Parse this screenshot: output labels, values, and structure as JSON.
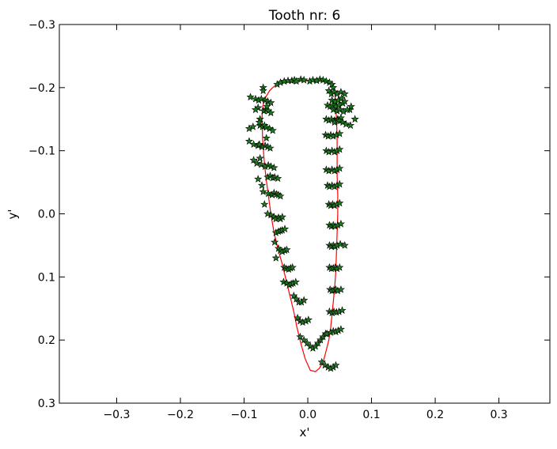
{
  "chart_data": {
    "type": "scatter",
    "title": "Tooth nr: 6",
    "xlabel": "x'",
    "ylabel": "y'",
    "xlim": [
      -0.39,
      0.38
    ],
    "ylim": [
      0.3,
      -0.3
    ],
    "y_axis_inverted": true,
    "grid": false,
    "legend": "none",
    "x_ticks": [
      -0.3,
      -0.2,
      -0.1,
      0.0,
      0.1,
      0.2,
      0.3
    ],
    "x_tick_labels": [
      "−0.3",
      "−0.2",
      "−0.1",
      "0.0",
      "0.1",
      "0.2",
      "0.3"
    ],
    "y_ticks": [
      -0.3,
      -0.2,
      -0.1,
      0.0,
      0.1,
      0.2,
      0.3
    ],
    "y_tick_labels": [
      "−0.3",
      "−0.2",
      "−0.1",
      "0.0",
      "0.1",
      "0.2",
      "0.3"
    ],
    "colors": {
      "marker_fill": "#1e7a1e",
      "marker_edge": "#000000",
      "mean_line": "#ff0000"
    },
    "series": [
      {
        "style": "line",
        "x": [
          -0.055,
          -0.06,
          -0.066,
          -0.071,
          -0.072,
          -0.071,
          -0.069,
          -0.066,
          -0.062,
          -0.058,
          -0.053,
          -0.047,
          -0.04,
          -0.034,
          -0.028,
          -0.022,
          -0.017,
          -0.011,
          -0.004,
          0.004,
          0.012,
          0.018,
          0.024,
          0.028,
          0.033,
          0.036,
          0.039,
          0.042,
          0.044,
          0.045,
          0.046,
          0.047,
          0.047,
          0.046,
          0.046,
          0.046,
          0.045,
          0.044,
          0.043,
          0.042,
          0.04,
          0.036,
          0.031,
          0.022,
          0.01,
          -0.004,
          -0.02,
          -0.036,
          -0.049,
          -0.055
        ],
        "y": [
          -0.2,
          -0.195,
          -0.185,
          -0.17,
          -0.15,
          -0.12,
          -0.09,
          -0.06,
          -0.03,
          0.0,
          0.03,
          0.055,
          0.08,
          0.105,
          0.13,
          0.155,
          0.18,
          0.205,
          0.23,
          0.248,
          0.25,
          0.245,
          0.235,
          0.22,
          0.2,
          0.18,
          0.15,
          0.12,
          0.09,
          0.06,
          0.03,
          0.0,
          -0.03,
          -0.06,
          -0.09,
          -0.12,
          -0.15,
          -0.17,
          -0.185,
          -0.195,
          -0.2,
          -0.205,
          -0.208,
          -0.21,
          -0.211,
          -0.211,
          -0.21,
          -0.208,
          -0.205,
          -0.2
        ]
      },
      {
        "style": "star-markers",
        "x": [
          -0.048,
          -0.043,
          -0.037,
          -0.031,
          -0.025,
          -0.021,
          -0.018,
          -0.011,
          -0.006,
          0.003,
          0.008,
          0.014,
          0.019,
          0.024,
          0.029,
          0.034,
          0.038,
          0.04,
          -0.09,
          -0.082,
          -0.077,
          -0.073,
          -0.067,
          -0.063,
          -0.058,
          -0.07,
          -0.07,
          -0.078,
          -0.082,
          -0.069,
          -0.066,
          -0.062,
          -0.058,
          -0.064,
          -0.092,
          -0.086,
          -0.075,
          -0.071,
          -0.068,
          -0.065,
          -0.06,
          -0.055,
          -0.075,
          -0.076,
          -0.092,
          -0.085,
          -0.078,
          -0.072,
          -0.067,
          -0.063,
          -0.059,
          -0.065,
          -0.085,
          -0.08,
          -0.073,
          -0.067,
          -0.062,
          -0.058,
          -0.053,
          -0.075,
          -0.078,
          -0.063,
          -0.059,
          -0.055,
          -0.052,
          -0.047,
          -0.072,
          -0.07,
          -0.062,
          -0.056,
          -0.053,
          -0.049,
          -0.046,
          -0.043,
          -0.068,
          -0.058,
          -0.053,
          -0.05,
          -0.046,
          -0.043,
          -0.04,
          -0.063,
          -0.05,
          -0.046,
          -0.043,
          -0.04,
          -0.036,
          -0.052,
          -0.046,
          -0.043,
          -0.04,
          -0.036,
          -0.033,
          -0.05,
          -0.037,
          -0.034,
          -0.03,
          -0.027,
          -0.024,
          -0.038,
          -0.033,
          -0.029,
          -0.026,
          -0.023,
          -0.019,
          -0.022,
          -0.018,
          -0.014,
          -0.01,
          -0.006,
          -0.016,
          -0.012,
          -0.008,
          -0.003,
          0.001,
          -0.012,
          -0.006,
          -0.001,
          0.004,
          0.008,
          0.012,
          0.016,
          0.02,
          0.024,
          0.028,
          0.022,
          0.027,
          0.032,
          0.036,
          0.04,
          0.044,
          0.03,
          0.036,
          0.04,
          0.044,
          0.048,
          0.052,
          0.034,
          0.038,
          0.041,
          0.045,
          0.049,
          0.054,
          0.035,
          0.038,
          0.041,
          0.044,
          0.047,
          0.052,
          0.034,
          0.037,
          0.04,
          0.043,
          0.046,
          0.05,
          0.034,
          0.037,
          0.04,
          0.043,
          0.046,
          0.051,
          0.034,
          0.037,
          0.04,
          0.043,
          0.047,
          0.052,
          0.033,
          0.036,
          0.039,
          0.042,
          0.046,
          0.05,
          0.031,
          0.034,
          0.038,
          0.042,
          0.046,
          0.05,
          0.029,
          0.033,
          0.038,
          0.042,
          0.046,
          0.05,
          0.029,
          0.033,
          0.038,
          0.042,
          0.046,
          0.05,
          0.028,
          0.032,
          0.036,
          0.04,
          0.045,
          0.05,
          0.029,
          0.033,
          0.037,
          0.042,
          0.047,
          0.052,
          0.031,
          0.035,
          0.039,
          0.044,
          0.049,
          0.055,
          0.033,
          0.037,
          0.041,
          0.046,
          0.052,
          0.058,
          0.038,
          0.043,
          0.048,
          0.053,
          0.058,
          0.066,
          0.04,
          0.046,
          0.05,
          0.056,
          0.062,
          0.068,
          0.074,
          0.042,
          0.047,
          0.05,
          0.055,
          0.06,
          0.067,
          -0.076,
          0.058
        ],
        "y": [
          -0.205,
          -0.208,
          -0.21,
          -0.211,
          -0.211,
          -0.212,
          -0.21,
          -0.213,
          -0.212,
          -0.21,
          -0.212,
          -0.211,
          -0.213,
          -0.212,
          -0.21,
          -0.208,
          -0.205,
          -0.2,
          -0.185,
          -0.182,
          -0.18,
          -0.182,
          -0.18,
          -0.178,
          -0.176,
          -0.2,
          -0.195,
          -0.168,
          -0.165,
          -0.163,
          -0.165,
          -0.163,
          -0.16,
          -0.17,
          -0.135,
          -0.138,
          -0.14,
          -0.138,
          -0.14,
          -0.137,
          -0.135,
          -0.132,
          -0.15,
          -0.145,
          -0.115,
          -0.11,
          -0.108,
          -0.106,
          -0.108,
          -0.106,
          -0.104,
          -0.12,
          -0.085,
          -0.08,
          -0.078,
          -0.075,
          -0.077,
          -0.075,
          -0.073,
          -0.088,
          -0.055,
          -0.058,
          -0.06,
          -0.057,
          -0.058,
          -0.056,
          -0.045,
          -0.035,
          -0.032,
          -0.03,
          -0.033,
          -0.031,
          -0.03,
          -0.028,
          -0.015,
          0.002,
          0.005,
          0.008,
          0.006,
          0.008,
          0.005,
          0.0,
          0.03,
          0.028,
          0.027,
          0.026,
          0.024,
          0.045,
          0.055,
          0.058,
          0.06,
          0.058,
          0.057,
          0.07,
          0.085,
          0.087,
          0.088,
          0.086,
          0.085,
          0.108,
          0.11,
          0.113,
          0.111,
          0.11,
          0.108,
          0.13,
          0.135,
          0.14,
          0.14,
          0.137,
          0.165,
          0.17,
          0.172,
          0.17,
          0.168,
          0.195,
          0.2,
          0.205,
          0.21,
          0.213,
          0.21,
          0.205,
          0.2,
          0.195,
          0.19,
          0.235,
          0.24,
          0.243,
          0.245,
          0.243,
          0.24,
          0.19,
          0.188,
          0.186,
          0.187,
          0.185,
          0.183,
          0.155,
          0.157,
          0.155,
          0.156,
          0.155,
          0.153,
          0.12,
          0.122,
          0.121,
          0.12,
          0.122,
          0.12,
          0.085,
          0.087,
          0.086,
          0.085,
          0.087,
          0.085,
          0.05,
          0.052,
          0.05,
          0.052,
          0.05,
          0.048,
          0.018,
          0.02,
          0.018,
          0.02,
          0.018,
          0.016,
          -0.015,
          -0.013,
          -0.015,
          -0.013,
          -0.015,
          -0.017,
          -0.045,
          -0.043,
          -0.045,
          -0.043,
          -0.045,
          -0.047,
          -0.07,
          -0.068,
          -0.07,
          -0.068,
          -0.07,
          -0.072,
          -0.1,
          -0.098,
          -0.1,
          -0.098,
          -0.1,
          -0.102,
          -0.125,
          -0.123,
          -0.125,
          -0.123,
          -0.125,
          -0.127,
          -0.15,
          -0.148,
          -0.15,
          -0.148,
          -0.15,
          -0.152,
          -0.172,
          -0.17,
          -0.172,
          -0.17,
          -0.172,
          -0.175,
          -0.195,
          -0.19,
          -0.193,
          -0.19,
          -0.193,
          -0.19,
          -0.18,
          -0.178,
          -0.18,
          -0.183,
          -0.178,
          -0.165,
          -0.165,
          -0.163,
          -0.165,
          -0.162,
          -0.165,
          -0.17,
          -0.15,
          -0.145,
          -0.148,
          -0.147,
          -0.145,
          -0.142,
          -0.14,
          -0.11,
          0.05
        ]
      }
    ]
  }
}
